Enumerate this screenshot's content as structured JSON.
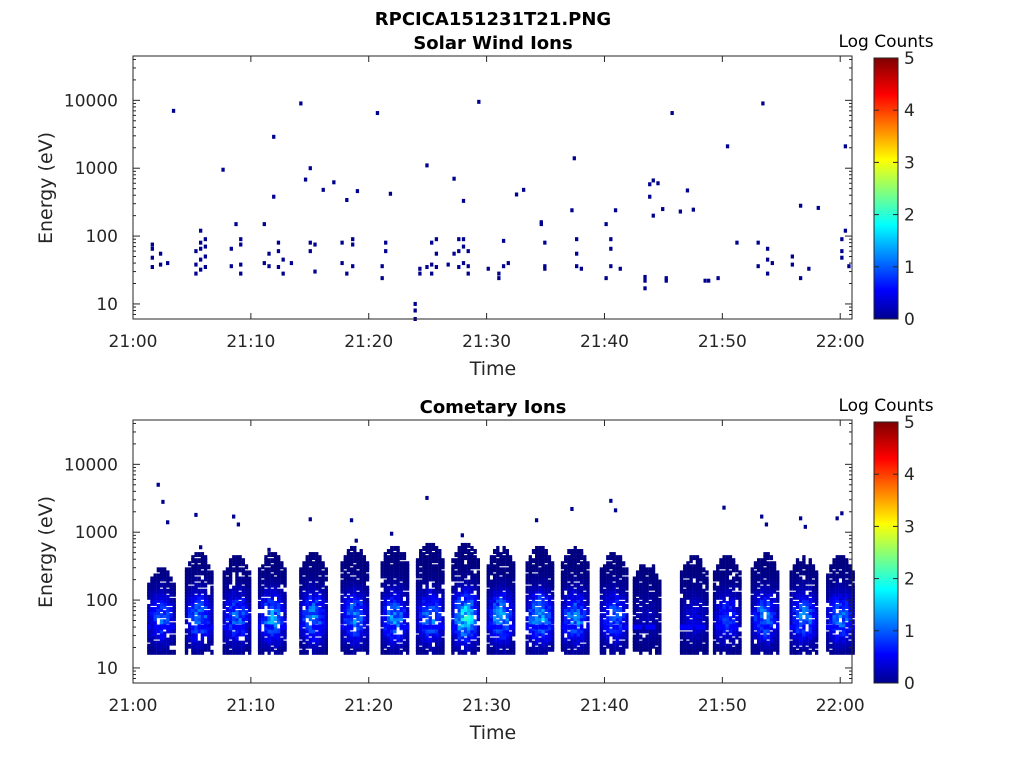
{
  "figure": {
    "title": "RPCICA151231T21.PNG",
    "colorbar": {
      "label": "Log Counts",
      "ticks": [
        "0",
        "1",
        "2",
        "3",
        "4",
        "5"
      ],
      "range": [
        0,
        5
      ],
      "colormap": "jet"
    }
  },
  "chart_data": [
    {
      "type": "heatmap",
      "title": "Solar Wind Ions",
      "xlabel": "Time",
      "ylabel": "Energy (eV)",
      "yscale": "log",
      "xlim": [
        "21:00",
        "22:01"
      ],
      "ylim": [
        6,
        45000
      ],
      "xticks": [
        "21:00",
        "21:10",
        "21:20",
        "21:30",
        "21:40",
        "21:50",
        "22:00"
      ],
      "yticks": [
        "10",
        "100",
        "1000",
        "10000"
      ],
      "ytick_values": [
        10,
        100,
        1000,
        10000
      ],
      "columns": [
        [
          1.5,
          [
            35,
            48,
            65,
            75
          ]
        ],
        [
          3.3,
          [
            7000
          ]
        ],
        [
          2.2,
          [
            38,
            55
          ]
        ],
        [
          2.8,
          [
            40
          ]
        ],
        [
          5.2,
          [
            28,
            38,
            60
          ]
        ],
        [
          5.6,
          [
            32,
            45,
            65,
            80,
            120
          ]
        ],
        [
          6.0,
          [
            35,
            50,
            70,
            90
          ]
        ],
        [
          7.5,
          [
            950
          ]
        ],
        [
          8.2,
          [
            36,
            65
          ]
        ],
        [
          8.6,
          [
            150
          ]
        ],
        [
          9.0,
          [
            28,
            38,
            75,
            90
          ]
        ],
        [
          11.0,
          [
            40,
            150
          ]
        ],
        [
          11.4,
          [
            36,
            55
          ]
        ],
        [
          11.8,
          [
            380,
            2900
          ]
        ],
        [
          12.2,
          [
            35,
            60,
            80
          ]
        ],
        [
          12.6,
          [
            28,
            45
          ]
        ],
        [
          13.3,
          [
            40
          ]
        ],
        [
          14.1,
          [
            9000
          ]
        ],
        [
          14.5,
          [
            680
          ]
        ],
        [
          14.9,
          [
            60,
            80,
            1000
          ]
        ],
        [
          15.3,
          [
            30,
            75
          ]
        ],
        [
          16.0,
          [
            480
          ]
        ],
        [
          16.9,
          [
            620
          ]
        ],
        [
          17.6,
          [
            40,
            80
          ]
        ],
        [
          18.0,
          [
            28,
            340
          ]
        ],
        [
          18.5,
          [
            36,
            75,
            90
          ]
        ],
        [
          18.9,
          [
            460
          ]
        ],
        [
          20.6,
          [
            6500
          ]
        ],
        [
          21.0,
          [
            24,
            36
          ]
        ],
        [
          21.7,
          [
            420
          ]
        ],
        [
          21.3,
          [
            60,
            80
          ]
        ],
        [
          23.8,
          [
            6,
            8,
            10
          ]
        ],
        [
          24.2,
          [
            28,
            33
          ]
        ],
        [
          24.8,
          [
            1100,
            35
          ]
        ],
        [
          25.2,
          [
            28,
            38,
            80
          ]
        ],
        [
          25.6,
          [
            35,
            55,
            90
          ]
        ],
        [
          26.6,
          [
            38
          ]
        ],
        [
          27.1,
          [
            55,
            700
          ]
        ],
        [
          27.5,
          [
            35,
            60,
            90
          ]
        ],
        [
          27.9,
          [
            40,
            70,
            90,
            330
          ]
        ],
        [
          28.3,
          [
            28,
            36,
            60
          ]
        ],
        [
          29.2,
          [
            9500
          ]
        ],
        [
          30.0,
          [
            33
          ]
        ],
        [
          30.9,
          [
            24,
            28
          ]
        ],
        [
          31.3,
          [
            36,
            85
          ]
        ],
        [
          31.7,
          [
            40
          ]
        ],
        [
          32.4,
          [
            410
          ]
        ],
        [
          33.0,
          [
            480
          ]
        ],
        [
          34.5,
          [
            150,
            160
          ]
        ],
        [
          34.8,
          [
            33,
            36,
            80
          ]
        ],
        [
          37.1,
          [
            240
          ]
        ],
        [
          37.3,
          [
            1400
          ]
        ],
        [
          37.5,
          [
            36,
            55,
            90
          ]
        ],
        [
          37.9,
          [
            33
          ]
        ],
        [
          40.0,
          [
            24,
            150
          ]
        ],
        [
          40.4,
          [
            36,
            65,
            90
          ]
        ],
        [
          40.8,
          [
            240
          ]
        ],
        [
          41.2,
          [
            33
          ]
        ],
        [
          43.3,
          [
            17,
            22,
            25
          ]
        ],
        [
          43.7,
          [
            380,
            580
          ]
        ],
        [
          44.0,
          [
            660,
            200
          ]
        ],
        [
          44.4,
          [
            600
          ]
        ],
        [
          44.8,
          [
            250
          ]
        ],
        [
          45.1,
          [
            22,
            24
          ]
        ],
        [
          45.6,
          [
            6500
          ]
        ],
        [
          46.3,
          [
            230
          ]
        ],
        [
          46.9,
          [
            470
          ]
        ],
        [
          47.4,
          [
            245
          ]
        ],
        [
          48.4,
          [
            22
          ]
        ],
        [
          48.7,
          [
            22
          ]
        ],
        [
          49.5,
          [
            24
          ]
        ],
        [
          50.3,
          [
            2100
          ]
        ],
        [
          51.1,
          [
            80
          ]
        ],
        [
          52.9,
          [
            36,
            80
          ]
        ],
        [
          53.3,
          [
            9000
          ]
        ],
        [
          53.7,
          [
            28,
            45,
            65
          ]
        ],
        [
          54.1,
          [
            40
          ]
        ],
        [
          55.8,
          [
            38,
            50
          ]
        ],
        [
          56.5,
          [
            24,
            280
          ]
        ],
        [
          57.2,
          [
            33
          ]
        ],
        [
          58.0,
          [
            260
          ]
        ],
        [
          60.0,
          [
            48,
            60,
            90
          ]
        ],
        [
          60.3,
          [
            120,
            2100
          ]
        ],
        [
          60.6,
          [
            36
          ]
        ]
      ]
    },
    {
      "type": "heatmap",
      "title": "Cometary Ions",
      "xlabel": "Time",
      "ylabel": "Energy (eV)",
      "yscale": "log",
      "xlim": [
        "21:00",
        "22:01"
      ],
      "ylim": [
        6,
        45000
      ],
      "xticks": [
        "21:00",
        "21:10",
        "21:20",
        "21:30",
        "21:40",
        "21:50",
        "22:00"
      ],
      "yticks": [
        "10",
        "100",
        "1000",
        "10000"
      ],
      "ytick_values": [
        10,
        100,
        1000,
        10000
      ],
      "bursts": [
        {
          "t": 2.3,
          "intensity": 1.1,
          "top": 300,
          "sparks": [
            5000,
            2800,
            1400
          ]
        },
        {
          "t": 5.5,
          "intensity": 1.3,
          "top": 500,
          "sparks": [
            1800,
            600
          ]
        },
        {
          "t": 8.7,
          "intensity": 1.2,
          "top": 450,
          "sparks": [
            1700,
            1300
          ]
        },
        {
          "t": 11.7,
          "intensity": 1.4,
          "top": 500,
          "sparks": [
            550
          ]
        },
        {
          "t": 15.2,
          "intensity": 1.4,
          "top": 500,
          "sparks": [
            1550
          ]
        },
        {
          "t": 18.7,
          "intensity": 1.3,
          "top": 600,
          "sparks": [
            1500,
            750
          ]
        },
        {
          "t": 22.1,
          "intensity": 1.4,
          "top": 650,
          "sparks": [
            950
          ]
        },
        {
          "t": 25.1,
          "intensity": 1.3,
          "top": 700,
          "sparks": [
            3200
          ]
        },
        {
          "t": 28.1,
          "intensity": 1.9,
          "top": 700,
          "sparks": [
            900
          ]
        },
        {
          "t": 31.1,
          "intensity": 1.5,
          "top": 600,
          "sparks": []
        },
        {
          "t": 34.4,
          "intensity": 1.6,
          "top": 600,
          "sparks": [
            1500
          ]
        },
        {
          "t": 37.4,
          "intensity": 1.4,
          "top": 600,
          "sparks": [
            2200
          ]
        },
        {
          "t": 40.7,
          "intensity": 1.2,
          "top": 500,
          "sparks": [
            2900,
            2100
          ]
        },
        {
          "t": 43.5,
          "intensity": 0.3,
          "top": 350,
          "sparks": []
        },
        {
          "t": 47.5,
          "intensity": 0.5,
          "top": 450,
          "sparks": []
        },
        {
          "t": 50.3,
          "intensity": 0.9,
          "top": 450,
          "sparks": [
            2300
          ]
        },
        {
          "t": 53.5,
          "intensity": 1.3,
          "top": 500,
          "sparks": [
            1700,
            1300
          ]
        },
        {
          "t": 56.8,
          "intensity": 1.3,
          "top": 450,
          "sparks": [
            1600,
            1200
          ]
        },
        {
          "t": 59.9,
          "intensity": 1.3,
          "top": 450,
          "sparks": [
            1600,
            1900
          ]
        }
      ]
    }
  ]
}
